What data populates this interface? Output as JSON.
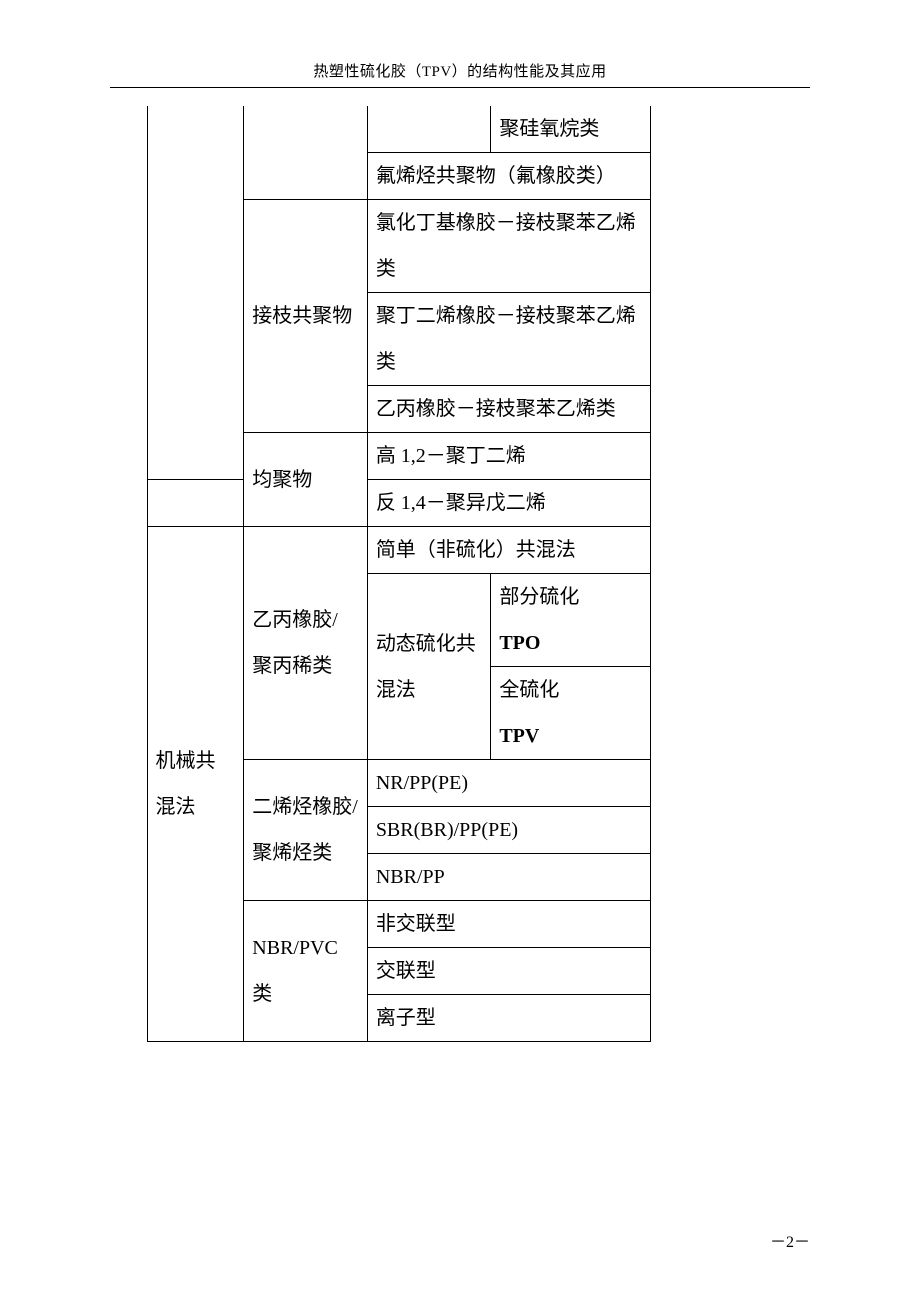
{
  "header": "热塑性硫化胶（TPV）的结构性能及其应用",
  "page_label": "－2－",
  "col_widths": {
    "c0": 36,
    "c1": 94,
    "c2": 120,
    "c3": 120,
    "c4": 155,
    "c5": 155
  },
  "cells": {
    "r1c5": "聚硅氧烷类",
    "r2": "氟烯烃共聚物（氟橡胶类）",
    "graft_label": "接枝共聚物",
    "r3": "氯化丁基橡胶－接枝聚苯乙烯类",
    "r4": "聚丁二烯橡胶－接枝聚苯乙烯类",
    "r5": "乙丙橡胶－接枝聚苯乙烯类",
    "homo_label": "均聚物",
    "r6a": "高 1,2－聚丁二烯",
    "r6b": "反 1,4－聚异戊二烯",
    "mix_label": "机械共混法",
    "epdm_label_a": "乙丙橡胶/",
    "epdm_label_b": "聚丙稀类",
    "r7": "简单（非硫化）共混法",
    "dyn_label": "动态硫化共混法",
    "r8a1": "部分硫化",
    "r8a2": "TPO",
    "r8b1": "全硫化",
    "r8b2": "TPV",
    "diene_label_a": "二烯烃橡胶/",
    "diene_label_b": "聚烯烃类",
    "r9a": "NR/PP(PE)",
    "r9b": "SBR(BR)/PP(PE)",
    "r9c": "NBR/PP",
    "nbr_label_a": "NBR/PVC",
    "nbr_label_b": "类",
    "r10a": "非交联型",
    "r10b": "交联型",
    "r10c": "离子型"
  }
}
